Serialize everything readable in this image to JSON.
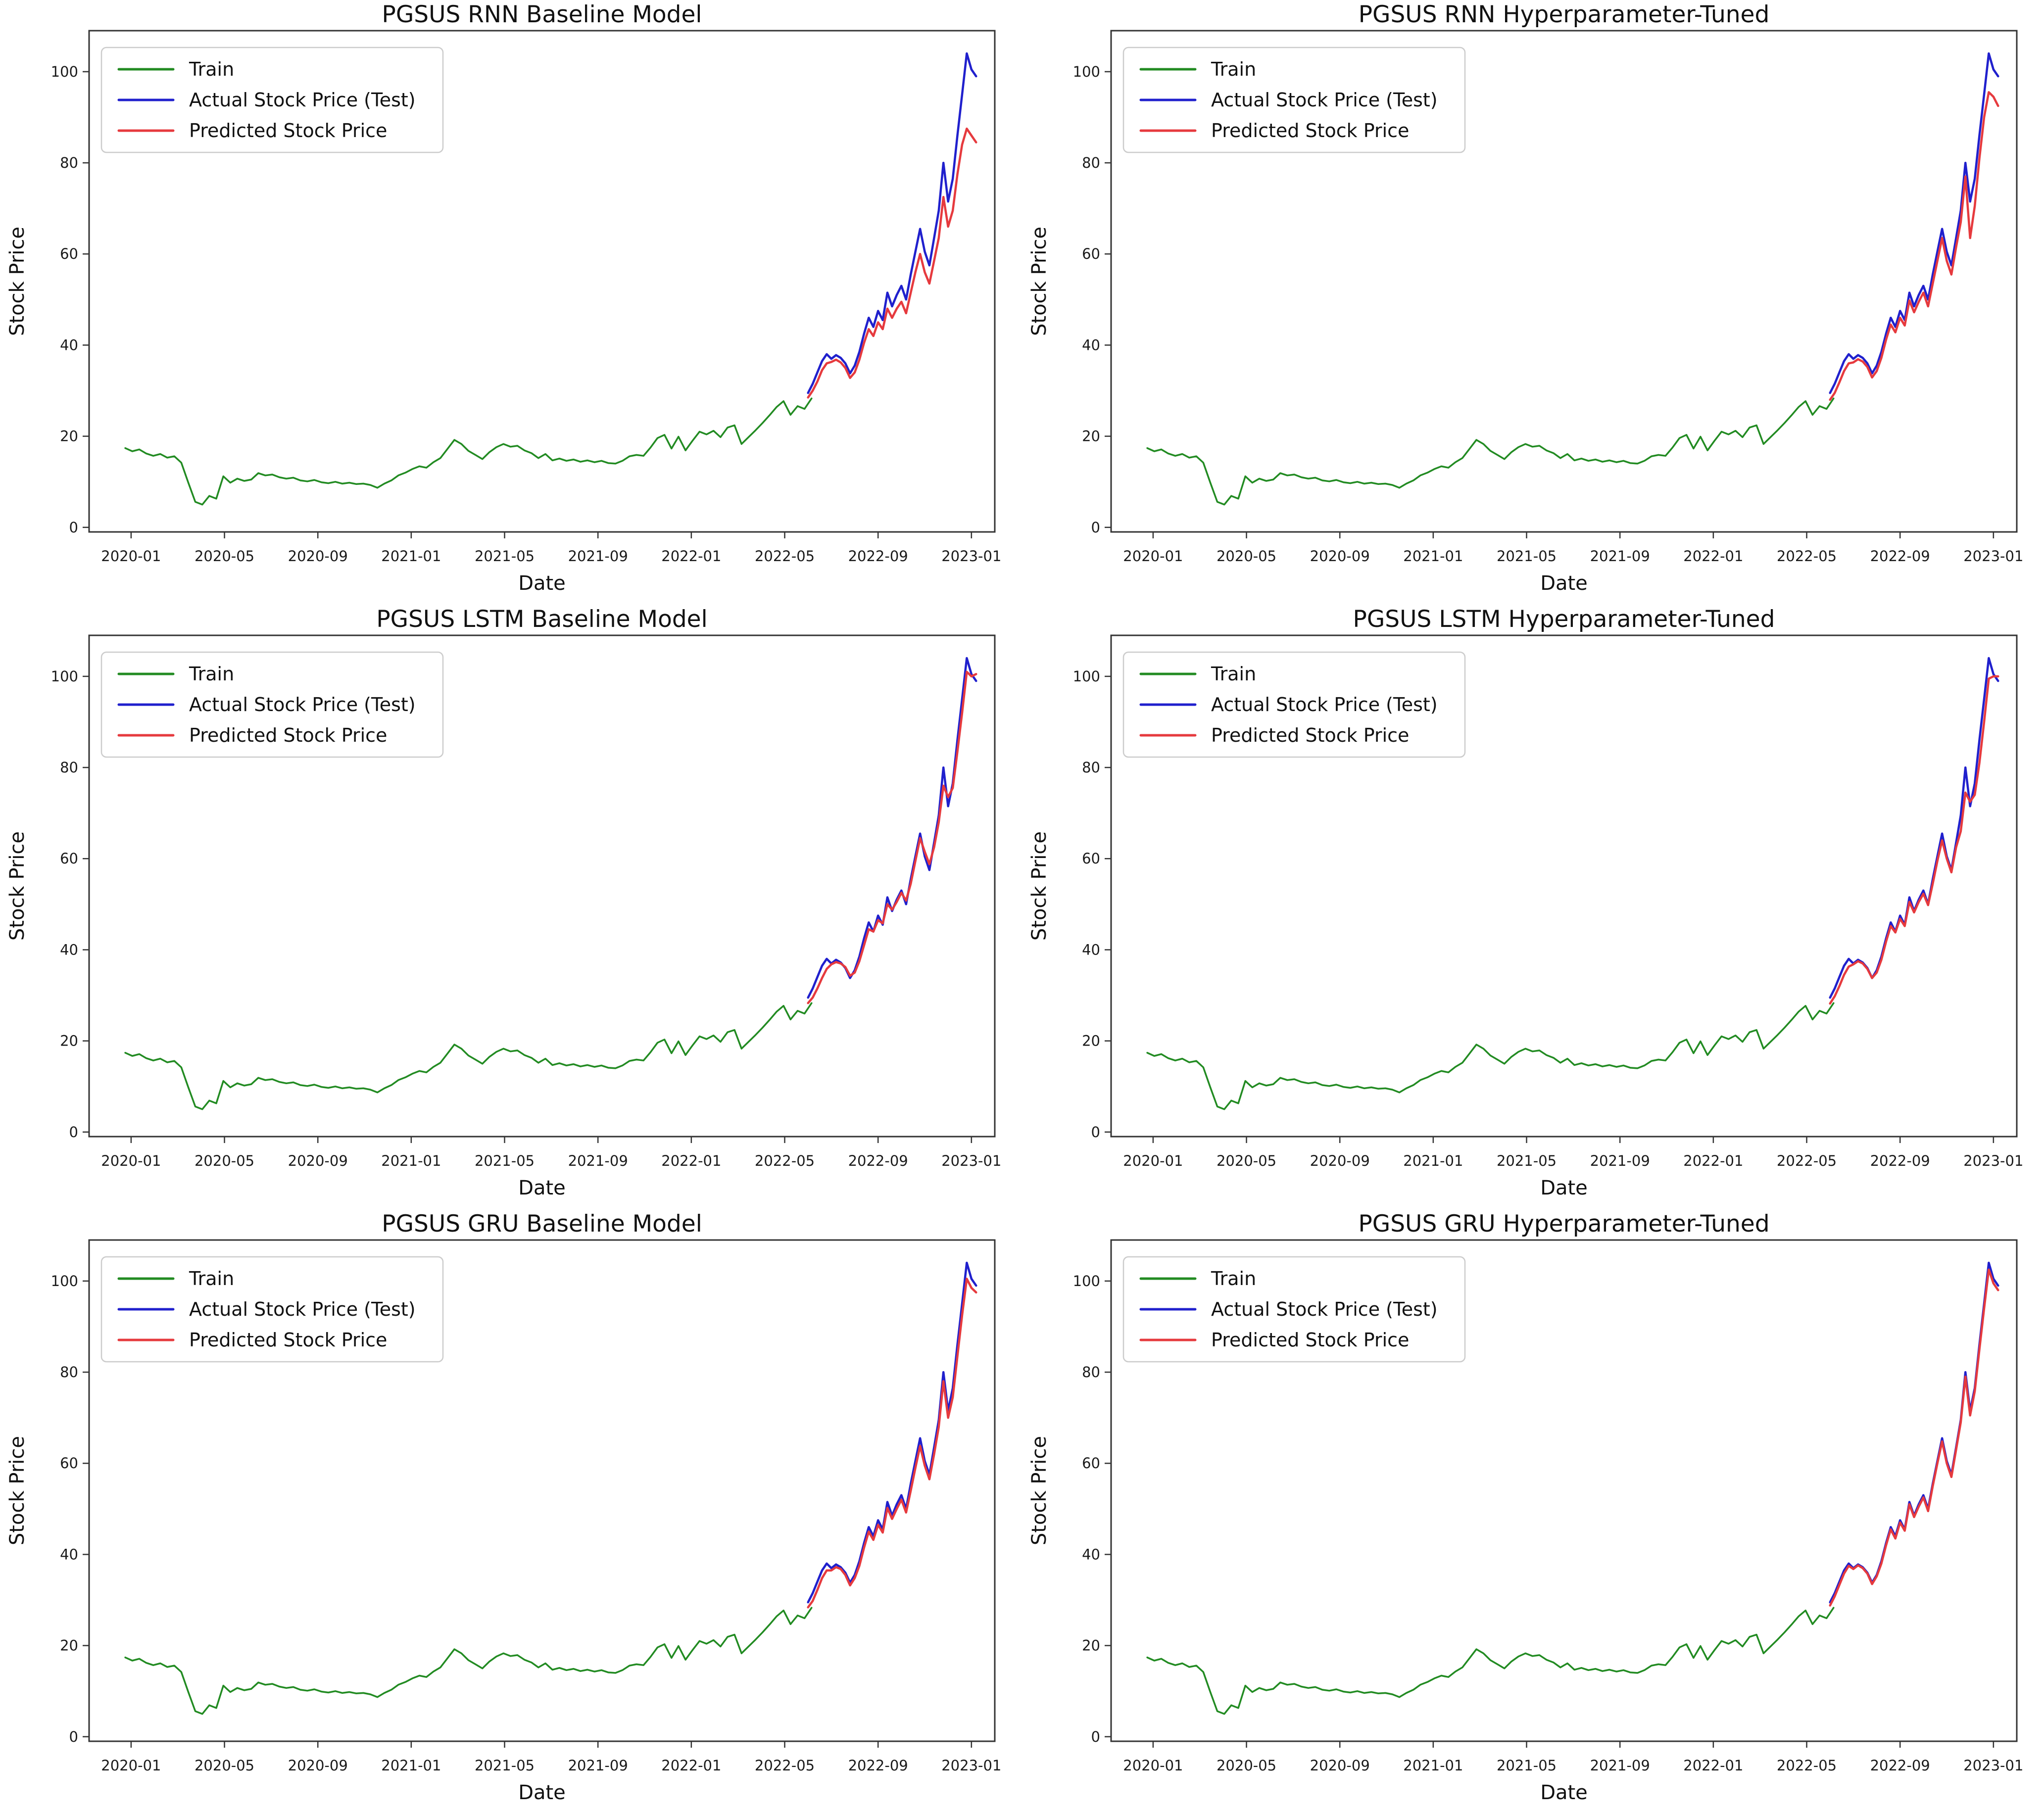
{
  "figure": {
    "background": "#ffffff",
    "rows": 3,
    "cols": 2
  },
  "chart_data": {
    "type": "line",
    "xlabel": "Date",
    "ylabel": "Stock Price",
    "x_unit": "months since 2020-01-01",
    "xlim_months": [
      -1.8,
      37.0
    ],
    "ylim": [
      -1,
      109
    ],
    "grid": "off",
    "y_ticks": [
      0,
      20,
      40,
      60,
      80,
      100
    ],
    "x_ticks": {
      "positions_months": [
        0,
        4,
        8,
        12,
        16,
        20,
        24,
        28,
        32,
        36
      ],
      "labels": [
        "2020-01",
        "2020-05",
        "2020-09",
        "2021-01",
        "2021-05",
        "2021-09",
        "2022-01",
        "2022-05",
        "2022-09",
        "2023-01"
      ]
    },
    "legend": {
      "position": "upper left",
      "entries": [
        {
          "label": "Train",
          "series_key": "train"
        },
        {
          "label": "Actual Stock Price (Test)",
          "series_key": "actual"
        },
        {
          "label": "Predicted Stock Price",
          "series_key": "predicted"
        }
      ]
    },
    "colors": {
      "train": "#228B22",
      "actual": "#2020CD",
      "predicted": "#E63A3E",
      "spine": "#333333",
      "legend_border": "#cccccc"
    },
    "series_common": {
      "train": {
        "t_start": -0.25,
        "t_step": 0.3,
        "values": [
          17.4,
          16.7,
          17.1,
          16.2,
          15.7,
          16.1,
          15.3,
          15.6,
          14.2,
          9.8,
          5.6,
          5.0,
          6.9,
          6.3,
          11.2,
          9.8,
          10.7,
          10.2,
          10.5,
          11.9,
          11.4,
          11.6,
          11.0,
          10.7,
          10.9,
          10.3,
          10.1,
          10.4,
          9.9,
          9.7,
          10.0,
          9.6,
          9.8,
          9.5,
          9.6,
          9.3,
          8.7,
          9.6,
          10.3,
          11.4,
          12.0,
          12.8,
          13.4,
          13.1,
          14.3,
          15.2,
          17.2,
          19.2,
          18.3,
          16.8,
          15.9,
          15.0,
          16.5,
          17.6,
          18.3,
          17.7,
          17.9,
          16.9,
          16.3,
          15.2,
          16.1,
          14.7,
          15.1,
          14.6,
          14.9,
          14.4,
          14.7,
          14.3,
          14.6,
          14.1,
          14.0,
          14.6,
          15.6,
          15.9,
          15.7,
          17.5,
          19.6,
          20.3,
          17.3,
          19.9,
          16.9,
          19.0,
          21.0,
          20.4,
          21.2,
          19.8,
          21.9,
          22.4,
          18.3,
          19.8,
          21.3,
          22.9,
          24.6,
          26.4,
          27.7,
          24.7,
          26.6,
          26.0,
          28.3
        ]
      },
      "actual": {
        "t_start": 29.0,
        "t_step": 0.2,
        "values": [
          29.5,
          31.5,
          34.0,
          36.5,
          38.0,
          37.0,
          37.8,
          37.2,
          36.0,
          33.8,
          35.5,
          38.5,
          42.5,
          46.0,
          44.0,
          47.5,
          45.5,
          51.5,
          48.5,
          51.0,
          53.0,
          50.0,
          55.5,
          60.5,
          65.5,
          60.5,
          57.5,
          63.5,
          69.5,
          80.0,
          71.5,
          76.5,
          86.0,
          95.0,
          104.0,
          100.5,
          99.0
        ]
      }
    },
    "charts": [
      {
        "key": "rnn-baseline",
        "title": "PGSUS RNN Baseline Model",
        "predicted": {
          "t_start": 29.0,
          "t_step": 0.2,
          "values": [
            28.5,
            30.0,
            32.0,
            34.5,
            36.0,
            36.3,
            36.8,
            36.2,
            35.0,
            32.8,
            34.0,
            36.8,
            40.5,
            43.5,
            42.0,
            45.0,
            43.5,
            48.0,
            46.0,
            48.0,
            49.5,
            47.0,
            51.5,
            56.0,
            60.0,
            56.0,
            53.5,
            58.5,
            63.5,
            72.5,
            66.0,
            69.5,
            77.5,
            84.0,
            87.5,
            86.0,
            84.5
          ]
        }
      },
      {
        "key": "rnn-tuned",
        "title": "PGSUS RNN Hyperparameter-Tuned",
        "predicted": {
          "t_start": 29.0,
          "t_step": 0.2,
          "values": [
            28.0,
            29.5,
            31.8,
            34.3,
            36.0,
            36.2,
            36.9,
            36.4,
            35.2,
            32.9,
            34.3,
            37.2,
            41.2,
            44.5,
            42.8,
            46.0,
            44.3,
            49.8,
            47.2,
            49.5,
            51.5,
            48.5,
            53.5,
            58.5,
            63.5,
            58.5,
            55.5,
            61.5,
            67.0,
            77.0,
            63.5,
            70.5,
            81.0,
            90.0,
            95.5,
            94.5,
            92.5
          ]
        }
      },
      {
        "key": "lstm-baseline",
        "title": "PGSUS LSTM Baseline Model",
        "predicted": {
          "t_start": 29.0,
          "t_step": 0.2,
          "values": [
            28.3,
            29.5,
            31.5,
            33.8,
            35.8,
            36.8,
            37.3,
            37.0,
            36.2,
            34.3,
            35.0,
            37.5,
            41.0,
            44.5,
            44.0,
            46.5,
            45.8,
            50.0,
            48.8,
            50.5,
            52.5,
            50.8,
            54.5,
            59.5,
            64.5,
            61.5,
            58.8,
            62.5,
            68.0,
            76.0,
            73.5,
            75.5,
            83.5,
            92.0,
            101.0,
            100.0,
            100.5
          ]
        }
      },
      {
        "key": "lstm-tuned",
        "title": "PGSUS LSTM Hyperparameter-Tuned",
        "predicted": {
          "t_start": 29.0,
          "t_step": 0.2,
          "values": [
            28.2,
            29.8,
            32.0,
            34.5,
            36.3,
            36.8,
            37.5,
            37.0,
            35.8,
            33.8,
            35.0,
            37.8,
            41.8,
            45.2,
            43.8,
            46.8,
            45.2,
            50.5,
            48.2,
            50.5,
            52.3,
            49.8,
            54.5,
            59.5,
            64.0,
            60.0,
            57.0,
            62.5,
            66.0,
            74.5,
            72.5,
            74.0,
            81.0,
            90.0,
            99.5,
            100.0,
            100.0
          ]
        }
      },
      {
        "key": "gru-baseline",
        "title": "PGSUS GRU Baseline Model",
        "predicted": {
          "t_start": 29.0,
          "t_step": 0.2,
          "values": [
            28.4,
            29.8,
            32.2,
            34.8,
            36.5,
            36.5,
            37.2,
            36.8,
            35.5,
            33.2,
            34.8,
            37.5,
            41.5,
            45.0,
            43.2,
            46.5,
            44.8,
            50.2,
            47.8,
            50.0,
            52.0,
            49.2,
            54.0,
            59.0,
            63.8,
            59.5,
            56.5,
            62.0,
            68.0,
            78.0,
            70.0,
            74.5,
            83.5,
            92.5,
            100.5,
            98.5,
            97.5
          ]
        }
      },
      {
        "key": "gru-tuned",
        "title": "PGSUS GRU Hyperparameter-Tuned",
        "predicted": {
          "t_start": 29.0,
          "t_step": 0.2,
          "values": [
            28.8,
            30.8,
            33.3,
            35.8,
            37.5,
            36.8,
            37.6,
            37.0,
            35.8,
            33.5,
            35.2,
            38.0,
            42.0,
            45.5,
            43.5,
            47.0,
            45.2,
            51.0,
            48.2,
            50.5,
            52.5,
            49.5,
            55.0,
            60.0,
            64.8,
            60.0,
            57.0,
            63.0,
            69.0,
            79.0,
            70.5,
            75.8,
            85.0,
            94.0,
            102.5,
            99.5,
            98.0
          ]
        }
      }
    ]
  }
}
